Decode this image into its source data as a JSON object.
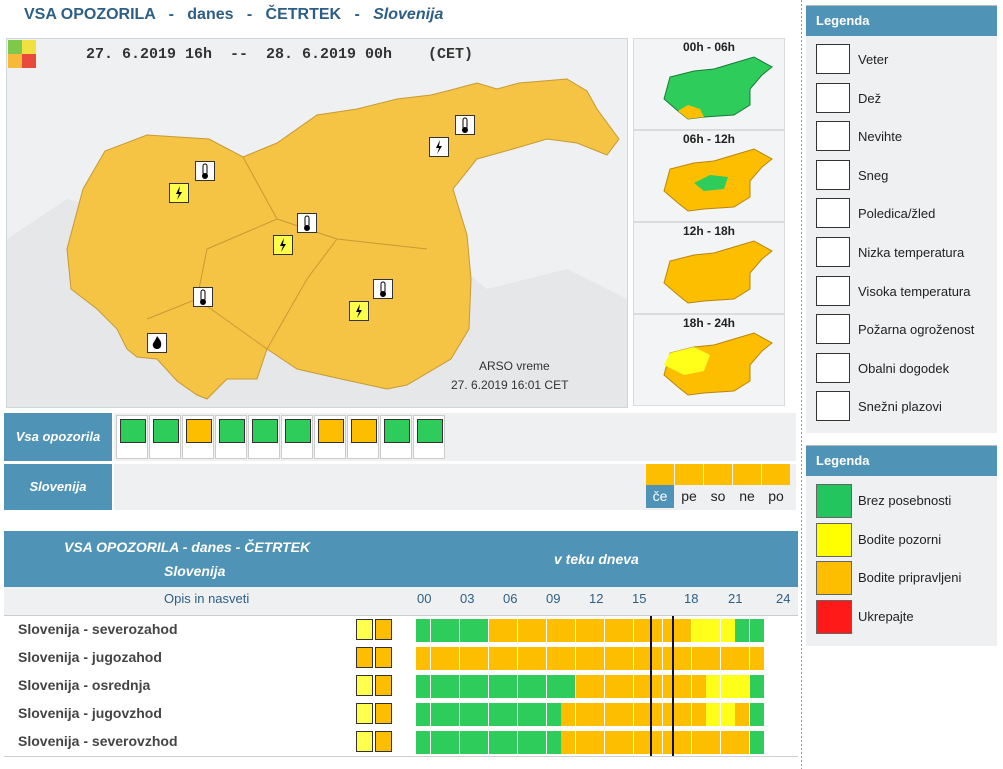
{
  "header": {
    "p1": "VSA OPOZORILA",
    "sep": "-",
    "p2": "danes",
    "p3": "ČETRTEK",
    "p4": "Slovenija"
  },
  "map": {
    "daterange": "27. 6.2019 16h  --  28. 6.2019 00h    (CET)",
    "source": "ARSO vreme",
    "timestamp": "27. 6.2019 16:01 CET"
  },
  "thumbs": [
    {
      "label": "00h - 06h"
    },
    {
      "label": "06h - 12h"
    },
    {
      "label": "12h - 18h"
    },
    {
      "label": "18h - 24h"
    }
  ],
  "bar1": {
    "label": "Vsa opozorila"
  },
  "bar2": {
    "label": "Slovenija",
    "days": [
      "če",
      "pe",
      "so",
      "ne",
      "po"
    ]
  },
  "table": {
    "title": "VSA OPOZORILA - danes - ČETRTEK",
    "subtitle": "Slovenija",
    "timeline_title": "v teku dneva",
    "col_label": "Opis in nasveti",
    "hours": [
      "00",
      "03",
      "06",
      "09",
      "12",
      "15",
      "18",
      "21",
      "24"
    ],
    "rows": [
      {
        "name": "Slovenija - severozahod",
        "icons": [
          "lightning-icon",
          "thermometer-icon"
        ],
        "segments": [
          "g",
          "g",
          "g",
          "g",
          "g",
          "o",
          "o",
          "o",
          "o",
          "o",
          "o",
          "o",
          "o",
          "o",
          "o",
          "o",
          "o",
          "o",
          "o",
          "y",
          "y",
          "y",
          "g",
          "g"
        ]
      },
      {
        "name": "Slovenija - jugozahod",
        "icons": [
          "thermometer-icon",
          "fire-icon"
        ],
        "segments": [
          "o",
          "o",
          "o",
          "o",
          "o",
          "o",
          "o",
          "o",
          "o",
          "o",
          "o",
          "o",
          "o",
          "o",
          "o",
          "o",
          "o",
          "o",
          "o",
          "o",
          "o",
          "o",
          "o",
          "o"
        ]
      },
      {
        "name": "Slovenija - osrednja",
        "icons": [
          "lightning-icon",
          "thermometer-icon"
        ],
        "segments": [
          "g",
          "g",
          "g",
          "g",
          "g",
          "g",
          "g",
          "g",
          "g",
          "g",
          "g",
          "o",
          "o",
          "o",
          "o",
          "o",
          "o",
          "o",
          "o",
          "o",
          "y",
          "y",
          "y",
          "g"
        ]
      },
      {
        "name": "Slovenija - jugovzhod",
        "icons": [
          "lightning-icon",
          "thermometer-icon"
        ],
        "segments": [
          "g",
          "g",
          "g",
          "g",
          "g",
          "g",
          "g",
          "g",
          "g",
          "g",
          "o",
          "o",
          "o",
          "o",
          "o",
          "o",
          "o",
          "o",
          "o",
          "o",
          "y",
          "y",
          "o",
          "g"
        ]
      },
      {
        "name": "Slovenija - severovzhod",
        "icons": [
          "lightning-icon",
          "thermometer-icon"
        ],
        "segments": [
          "g",
          "g",
          "g",
          "g",
          "g",
          "g",
          "g",
          "g",
          "g",
          "g",
          "o",
          "o",
          "o",
          "o",
          "o",
          "o",
          "o",
          "o",
          "o",
          "o",
          "o",
          "o",
          "o",
          "g"
        ]
      }
    ]
  },
  "legend1": {
    "title": "Legenda",
    "items": [
      "Veter",
      "Dež",
      "Nevihte",
      "Sneg",
      "Poledica/žled",
      "Nizka temperatura",
      "Visoka temperatura",
      "Požarna ogroženost",
      "Obalni dogodek",
      "Snežni plazovi"
    ]
  },
  "legend2": {
    "title": "Legenda",
    "items": [
      {
        "label": "Brez posebnosti",
        "color": "#22c55e"
      },
      {
        "label": "Bodite pozorni",
        "color": "#ffff00"
      },
      {
        "label": "Bodite pripravljeni",
        "color": "#fdbe00"
      },
      {
        "label": "Ukrepajte",
        "color": "#ff1a1a"
      }
    ]
  },
  "colors": {
    "g": "#2ecc5a",
    "o": "#fdbe00",
    "y": "#ffff1a",
    "blue": "#4f93b7"
  }
}
